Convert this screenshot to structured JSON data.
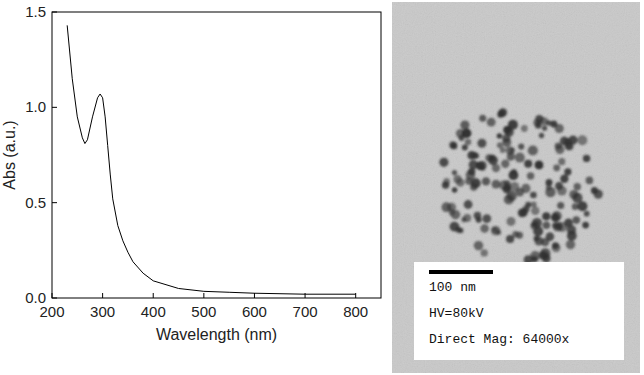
{
  "chart_data": {
    "type": "line",
    "x_label": "Wavelength (nm)",
    "y_label": "Abs (a.u.)",
    "x": [
      230,
      240,
      250,
      260,
      265,
      270,
      280,
      290,
      295,
      300,
      305,
      310,
      315,
      320,
      330,
      340,
      350,
      360,
      380,
      400,
      450,
      500,
      550,
      600,
      700,
      800
    ],
    "values": [
      1.43,
      1.15,
      0.95,
      0.84,
      0.81,
      0.83,
      0.95,
      1.05,
      1.07,
      1.05,
      0.95,
      0.8,
      0.65,
      0.52,
      0.38,
      0.3,
      0.24,
      0.19,
      0.13,
      0.09,
      0.05,
      0.035,
      0.03,
      0.025,
      0.02,
      0.02
    ],
    "color": "#000000",
    "xlim": [
      200,
      850
    ],
    "ylim": [
      0,
      1.5
    ],
    "xticks": [
      200,
      300,
      400,
      500,
      600,
      700,
      800
    ],
    "yticks": [
      {
        "value": 0,
        "label": "0.0"
      },
      {
        "value": 0.5,
        "label": "0.5"
      },
      {
        "value": 1,
        "label": "1.0"
      },
      {
        "value": 1.5,
        "label": "1.5"
      }
    ],
    "grid": false
  },
  "micrograph": {
    "scale_bar_label": "100 nm",
    "info": [
      "HV=80kV",
      "Direct Mag: 64000x"
    ]
  }
}
